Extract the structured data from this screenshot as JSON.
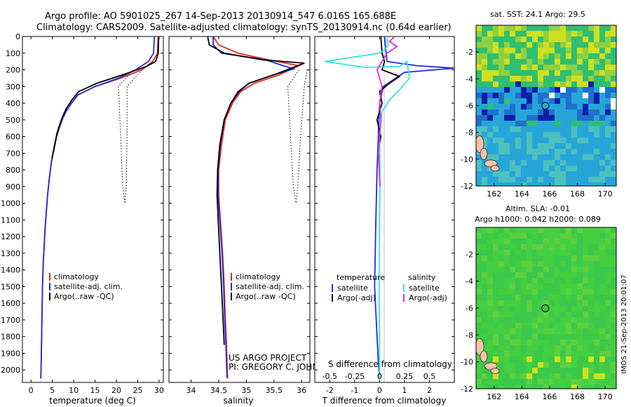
{
  "header": {
    "line1": "Argo profile: AO 5901025_267 14-Sep-2013 20130914_547 6.016S 165.688E",
    "line2": "Climatology: CARS2009. Satellite-adjusted climatology: synTS_20130914.nc (0.64d earlier)"
  },
  "colors": {
    "climatology": "#e8261a",
    "satellite": "#1f2be0",
    "argo": "#000000",
    "salinity_satellite": "#38e0e8",
    "salinity_argo": "#e02be0",
    "land": "#f2c4a8",
    "ocean_mid": "#2fbf70",
    "ocean_warm": "#cfe020",
    "ocean_cool": "#26a6d8"
  },
  "credits": {
    "project": "US ARGO PROJECT",
    "pi": "PI: GREGORY C. JOHNSON",
    "imos_stamp": "IMOS 21-Sep-2013 20:01:07"
  },
  "chart_data": [
    {
      "type": "line",
      "panel": "temperature",
      "xlabel": "temperature (deg C)",
      "ylabel": "",
      "xlim": [
        -2,
        31
      ],
      "ylim": [
        2075,
        0
      ],
      "x_ticks": [
        0,
        5,
        10,
        15,
        20,
        25,
        30
      ],
      "y_ticks": [
        0,
        100,
        200,
        300,
        400,
        500,
        600,
        700,
        800,
        900,
        1000,
        1100,
        1200,
        1300,
        1400,
        1500,
        1600,
        1700,
        1800,
        1900,
        2000
      ],
      "legend": [
        "climatology",
        "satellite-adj. clim.",
        "Argo(..raw -QC)"
      ],
      "legend_position": "lower-right",
      "series": [
        {
          "name": "climatology",
          "color_key": "climatology",
          "style": "solid",
          "x": [
            29.8,
            29.6,
            28.5,
            26,
            21,
            15,
            11,
            9.5,
            8.2,
            7.3,
            6.6,
            6,
            5.6,
            5.2,
            4.8,
            4.3,
            3.9,
            3.6,
            3.3,
            3.1,
            2.9,
            2.7,
            2.6,
            2.5,
            2.4,
            2.3
          ],
          "y": [
            0,
            100,
            150,
            200,
            250,
            300,
            350,
            400,
            450,
            500,
            550,
            600,
            650,
            700,
            750,
            850,
            950,
            1050,
            1150,
            1250,
            1350,
            1500,
            1650,
            1800,
            1950,
            2050
          ]
        },
        {
          "name": "satellite-adj. clim.",
          "color_key": "satellite",
          "style": "solid",
          "x": [
            28.9,
            28.7,
            27.5,
            24.5,
            20.5,
            15,
            11,
            9.5,
            8.2,
            7.3,
            6.6,
            6,
            5.6,
            5.2,
            4.8,
            4.3,
            3.9,
            3.6,
            3.3,
            3.1,
            2.9,
            2.7,
            2.6,
            2.5,
            2.4,
            2.3
          ],
          "y": [
            0,
            100,
            150,
            200,
            250,
            300,
            350,
            400,
            450,
            500,
            550,
            600,
            650,
            700,
            750,
            850,
            950,
            1050,
            1150,
            1250,
            1350,
            1500,
            1650,
            1800,
            1950,
            2050
          ]
        },
        {
          "name": "Argo(..raw -QC)",
          "color_key": "argo",
          "style": "solid",
          "x": [
            29.9,
            29.8,
            29.2,
            27,
            21.5,
            15.5,
            11.2,
            9.6,
            8.3,
            7.4,
            6.7,
            6.1,
            5.7,
            5.3,
            4.9
          ],
          "y": [
            0,
            100,
            150,
            180,
            230,
            280,
            330,
            380,
            430,
            480,
            530,
            580,
            630,
            680,
            730
          ]
        },
        {
          "name": "",
          "color_key": "argo",
          "style": "dotted",
          "x": [
            24,
            20.5,
            21,
            21.5,
            22
          ],
          "y": [
            200,
            300,
            600,
            900,
            1000
          ]
        },
        {
          "name": "",
          "color_key": "argo",
          "style": "dotted",
          "x": [
            26,
            22.5,
            22.5,
            22.3,
            22
          ],
          "y": [
            200,
            300,
            600,
            900,
            1000
          ]
        }
      ]
    },
    {
      "type": "line",
      "panel": "salinity",
      "xlabel": "salinity",
      "ylabel": "",
      "xlim": [
        33.6,
        36.15
      ],
      "ylim": [
        2075,
        0
      ],
      "x_ticks": [
        34,
        34.5,
        35,
        35.5,
        36
      ],
      "legend": [
        "climatology",
        "satellite-adj. clim.",
        "Argo(..raw -QC)"
      ],
      "legend_position": "lower-right",
      "series": [
        {
          "name": "climatology",
          "color_key": "climatology",
          "style": "solid",
          "x": [
            34.4,
            34.5,
            34.85,
            35.4,
            35.95,
            35.6,
            35.15,
            34.9,
            34.75,
            34.62,
            34.55,
            34.5,
            34.5,
            34.53,
            34.57,
            34.6,
            34.62,
            34.64,
            34.65,
            34.66
          ],
          "y": [
            0,
            50,
            100,
            140,
            175,
            230,
            280,
            330,
            400,
            500,
            650,
            800,
            950,
            1100,
            1300,
            1500,
            1700,
            1850,
            1950,
            2050
          ]
        },
        {
          "name": "satellite-adj. clim.",
          "color_key": "satellite",
          "style": "solid",
          "x": [
            34.4,
            34.4,
            34.55,
            35.35,
            35.85,
            35.45,
            35.05,
            34.85,
            34.72,
            34.6,
            34.53,
            34.49,
            34.49,
            34.52,
            34.56,
            34.59,
            34.61,
            34.63,
            34.64,
            34.65
          ],
          "y": [
            0,
            50,
            100,
            140,
            195,
            235,
            280,
            330,
            400,
            500,
            650,
            800,
            950,
            1100,
            1300,
            1500,
            1700,
            1850,
            1950,
            2050
          ]
        },
        {
          "name": "Argo(..raw -QC)",
          "color_key": "argo",
          "style": "solid",
          "x": [
            34.3,
            34.33,
            34.6,
            35.3,
            36.05,
            35.5,
            35.05,
            34.87,
            34.72,
            34.6,
            34.52,
            34.48,
            34.47,
            34.49,
            34.52,
            34.55,
            34.58,
            34.6
          ],
          "y": [
            0,
            50,
            100,
            140,
            160,
            230,
            280,
            330,
            400,
            500,
            650,
            800,
            950,
            1100,
            1300,
            1500,
            1700,
            1850
          ]
        },
        {
          "name": "",
          "color_key": "argo",
          "style": "dotted",
          "x": [
            35.95,
            35.75,
            35.8,
            35.85,
            35.9
          ],
          "y": [
            200,
            300,
            600,
            900,
            1000
          ]
        },
        {
          "name": "",
          "color_key": "argo",
          "style": "dotted",
          "x": [
            36.1,
            36.05,
            35.98,
            35.93,
            35.9
          ],
          "y": [
            200,
            300,
            600,
            900,
            1000
          ]
        }
      ]
    },
    {
      "type": "line",
      "panel": "difference",
      "xlabel": "T difference from climatology",
      "xlabel_top": "S difference from climatology",
      "xlim": [
        -2.6,
        3.0
      ],
      "ylim": [
        2075,
        0
      ],
      "x_ticks": [
        -2,
        -1,
        0,
        1,
        2
      ],
      "x_ticks_salinity": [
        -0.5,
        -0.25,
        0,
        0.25,
        0.5
      ],
      "legend_headers": [
        "temperature",
        "salinity"
      ],
      "legend": [
        "satellite",
        "Argo(-adj)",
        "satellite",
        "Argo(-adj)"
      ],
      "legend_position": "lower-center",
      "series": [
        {
          "name": "satellite",
          "group": "temperature",
          "color_key": "satellite",
          "style": "solid",
          "x": [
            0.2,
            0.25,
            0.3,
            1.5,
            3.0,
            1.0,
            0.15,
            0.0,
            -0.05,
            -0.1,
            -0.15,
            -0.2,
            -0.1,
            -0.05,
            0
          ],
          "y": [
            0,
            80,
            150,
            175,
            190,
            215,
            300,
            400,
            600,
            800,
            1100,
            1500,
            1800,
            1950,
            2050
          ]
        },
        {
          "name": "Argo(-adj)",
          "group": "temperature",
          "color_key": "argo",
          "style": "solid",
          "x": [
            0.05,
            0.1,
            0.2,
            0.1,
            0.8,
            0.4,
            0.0,
            0.1,
            -0.1,
            0.05,
            -0.05,
            0.02
          ],
          "y": [
            0,
            100,
            150,
            200,
            240,
            280,
            330,
            400,
            500,
            600,
            700,
            800
          ]
        },
        {
          "name": "satellite",
          "group": "salinity",
          "color_key": "salinity_satellite",
          "style": "solid",
          "x": [
            0.3,
            0.35,
            0.2,
            0.0,
            -2.2,
            -0.6,
            0.8,
            1.1,
            1.2,
            0.8,
            0.4,
            0.1,
            0.0,
            0.02,
            0.0,
            -0.02,
            0
          ],
          "y": [
            0,
            50,
            80,
            100,
            150,
            185,
            180,
            150,
            250,
            320,
            380,
            450,
            600,
            800,
            1100,
            1500,
            2050
          ]
        },
        {
          "name": "Argo(-adj)",
          "group": "salinity",
          "color_key": "salinity_argo",
          "style": "solid",
          "x": [
            0.6,
            0.4,
            0.7,
            0.3,
            -0.1,
            0.1,
            0.0,
            0.05,
            -0.05,
            0.02
          ],
          "y": [
            0,
            30,
            60,
            100,
            200,
            300,
            400,
            500,
            700,
            900
          ]
        }
      ]
    },
    {
      "type": "heatmap",
      "panel": "map-sst",
      "title": "sat. SST: 24.1  Argo: 29.5",
      "x_ticks": [
        162,
        164,
        166,
        168,
        170
      ],
      "y_ticks": [
        -2,
        -4,
        -6,
        -8,
        -10,
        -12
      ],
      "xlim": [
        160.7,
        170.8
      ],
      "ylim": [
        -12,
        0
      ],
      "float_position": {
        "lon": 165.688,
        "lat": -6.016
      }
    },
    {
      "type": "heatmap",
      "panel": "map-sla",
      "title_line1": "Altim. SLA: -0.01",
      "title_line2": "Argo h1000: 0.042  h2000: 0.089",
      "x_ticks": [
        162,
        164,
        166,
        168,
        170
      ],
      "y_ticks": [
        -2,
        -4,
        -6,
        -8,
        -10,
        -12
      ],
      "xlim": [
        160.7,
        170.8
      ],
      "ylim": [
        -12,
        0
      ],
      "float_position": {
        "lon": 165.688,
        "lat": -6.016
      }
    }
  ]
}
